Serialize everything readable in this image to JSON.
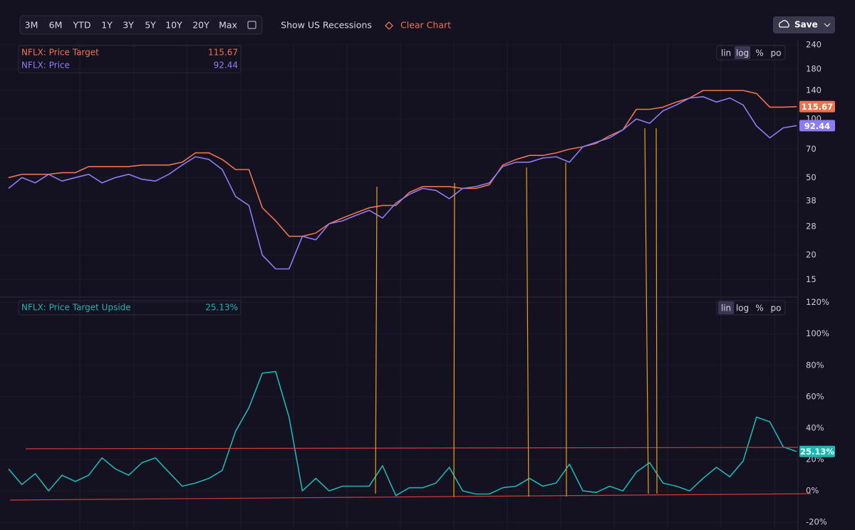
{
  "toolbar": {
    "ranges": [
      "3M",
      "6M",
      "YTD",
      "1Y",
      "3Y",
      "5Y",
      "10Y",
      "20Y",
      "Max"
    ],
    "recessions": "Show US Recessions",
    "clear": "Clear Chart",
    "save": "Save"
  },
  "chart_data": [
    {
      "type": "line",
      "log_scale": true,
      "grid": true,
      "scale_buttons": [
        "lin",
        "log",
        "%",
        "po"
      ],
      "categories": [
        null,
        null,
        null,
        null,
        null,
        null,
        null,
        null,
        null,
        null,
        null,
        null,
        null,
        null,
        null,
        null,
        null,
        null,
        null,
        null,
        null,
        null,
        null,
        null,
        null,
        null,
        null,
        null,
        null,
        null,
        null,
        null,
        null,
        null,
        null,
        null,
        null,
        null,
        null,
        null,
        null,
        null,
        null,
        null,
        null,
        null,
        null,
        null,
        null,
        null,
        null,
        null,
        null,
        null,
        null,
        null,
        null,
        null,
        null,
        null
      ],
      "ylim": [
        12.3,
        246
      ],
      "yticks": [
        15,
        20,
        28,
        38,
        50,
        70,
        100,
        140,
        180,
        240
      ],
      "series": [
        {
          "name": "NFLX: Price Target",
          "color": "#f0714f",
          "values": [
            50,
            52,
            52,
            52,
            53,
            53,
            57,
            57,
            57,
            57,
            58,
            58,
            58,
            60,
            67,
            67,
            62,
            55,
            55,
            35,
            30,
            25,
            25,
            26,
            29,
            31,
            33,
            35,
            36,
            36,
            42,
            45,
            45,
            45,
            44,
            44,
            46,
            58,
            62,
            65,
            65,
            67,
            70,
            72,
            75,
            82,
            88,
            112,
            112,
            115,
            122,
            128,
            140,
            140,
            140,
            140,
            135,
            115,
            115,
            115.67
          ]
        },
        {
          "name": "NFLX: Price",
          "color": "#8b7cf6",
          "values": [
            44,
            50,
            47,
            52,
            48,
            50,
            52,
            47,
            50,
            52,
            49,
            48,
            52,
            58,
            64,
            62,
            55,
            40,
            36,
            20,
            17,
            17,
            25,
            24,
            29,
            30,
            32,
            34,
            31,
            37,
            41,
            44,
            43,
            39,
            44,
            45,
            47,
            57,
            60,
            60,
            63,
            64,
            60,
            72,
            76,
            80,
            88,
            100,
            95,
            110,
            118,
            128,
            130,
            122,
            128,
            118,
            92,
            80,
            90,
            92.44
          ]
        }
      ]
    },
    {
      "type": "line",
      "log_scale": false,
      "grid": true,
      "scale_buttons": [
        "lin",
        "log",
        "%",
        "po"
      ],
      "categories": [
        null,
        null,
        null,
        null,
        null,
        null,
        null,
        null,
        null,
        null,
        null,
        null,
        null,
        null,
        null,
        null,
        null,
        null,
        null,
        null,
        null,
        null,
        null,
        null,
        null,
        null,
        null,
        null,
        null,
        null,
        null,
        null,
        null,
        null,
        null,
        null,
        null,
        null,
        null,
        null,
        null,
        null,
        null,
        null,
        null,
        null,
        null,
        null,
        null,
        null,
        null,
        null,
        null,
        null,
        null,
        null,
        null,
        null,
        null,
        null
      ],
      "ylim": [
        -24,
        123
      ],
      "yticks": [
        {
          "value": -20,
          "label": "-20%"
        },
        {
          "value": 0,
          "label": "0%"
        },
        {
          "value": 20,
          "label": "20%"
        },
        {
          "value": 40,
          "label": "40%"
        },
        {
          "value": 60,
          "label": "60%"
        },
        {
          "value": 80,
          "label": "80%"
        },
        {
          "value": 100,
          "label": "100%"
        },
        {
          "value": 120,
          "label": "120%"
        }
      ],
      "series": [
        {
          "name": "NFLX: Price Target Upside",
          "color": "#1fb3b3",
          "last_value_label": "25.13%",
          "values": [
            14,
            4,
            11,
            0,
            10,
            6,
            10,
            21,
            14,
            10,
            18,
            21,
            12,
            3,
            5,
            8,
            13,
            38,
            53,
            75,
            76,
            47,
            0,
            8,
            0,
            3,
            3,
            3,
            16,
            -3,
            2,
            2,
            5,
            15,
            0,
            -2,
            -2,
            2,
            3,
            8,
            3,
            5,
            17,
            0,
            -1,
            3,
            0,
            12,
            18,
            5,
            3,
            0,
            8,
            15,
            9,
            19,
            47,
            44,
            28,
            25.13
          ]
        }
      ]
    }
  ]
}
